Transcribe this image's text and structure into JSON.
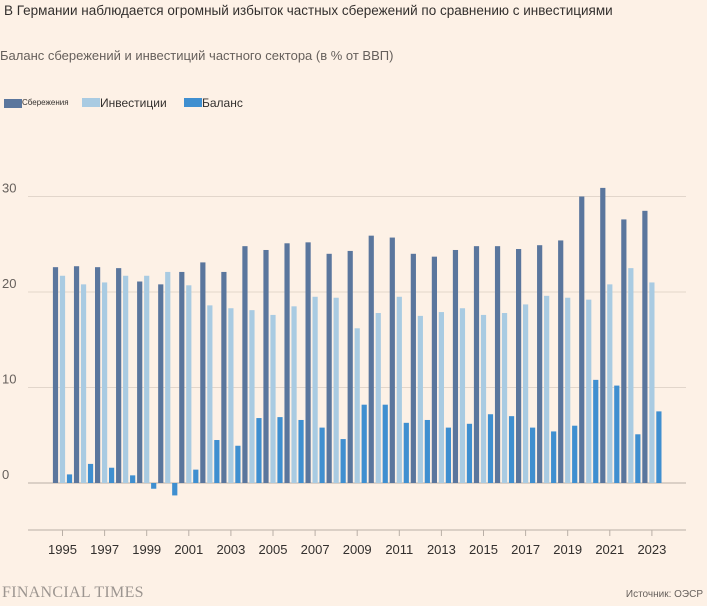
{
  "chart_data": {
    "type": "bar",
    "title": "В Германии наблюдается огромный избыток частных сбережений по сравнению с инвестициями",
    "subtitle": "Баланс сбережений и инвестиций частного сектора (в % от ВВП)",
    "xlabel": "",
    "ylabel": "",
    "ylim": [
      -5,
      33
    ],
    "yticks": [
      0,
      10,
      20,
      30
    ],
    "grid": true,
    "legend_position": "top-left",
    "categories": [
      "1995",
      "1996",
      "1997",
      "1998",
      "1999",
      "2000",
      "2001",
      "2002",
      "2003",
      "2004",
      "2005",
      "2006",
      "2007",
      "2008",
      "2009",
      "2010",
      "2011",
      "2012",
      "2013",
      "2014",
      "2015",
      "2016",
      "2017",
      "2018",
      "2019",
      "2020",
      "2021",
      "2022",
      "2023"
    ],
    "x_tick_labels": [
      "1995",
      "1997",
      "1999",
      "2001",
      "2003",
      "2005",
      "2007",
      "2009",
      "2011",
      "2013",
      "2015",
      "2017",
      "2019",
      "2021",
      "2023"
    ],
    "series": [
      {
        "name": "Сбережения",
        "color": "#5a769d",
        "values": [
          22.6,
          22.7,
          22.6,
          22.5,
          21.1,
          20.8,
          22.1,
          23.1,
          22.1,
          24.8,
          24.4,
          25.1,
          25.2,
          24.0,
          24.3,
          25.9,
          25.7,
          24.0,
          23.7,
          24.4,
          24.8,
          24.8,
          24.5,
          24.9,
          25.4,
          30.0,
          30.9,
          27.6,
          28.5
        ]
      },
      {
        "name": "Инвестиции",
        "color": "#a9cbe2",
        "values": [
          21.7,
          20.8,
          21.0,
          21.7,
          21.7,
          22.1,
          20.7,
          18.6,
          18.3,
          18.1,
          17.6,
          18.5,
          19.5,
          19.4,
          16.2,
          17.8,
          19.5,
          17.5,
          17.9,
          18.3,
          17.6,
          17.8,
          18.7,
          19.6,
          19.4,
          19.2,
          20.8,
          22.5,
          21.0
        ]
      },
      {
        "name": "Баланс",
        "color": "#3f8fd0",
        "values": [
          0.9,
          2.0,
          1.6,
          0.8,
          -0.6,
          -1.3,
          1.4,
          4.5,
          3.9,
          6.8,
          6.9,
          6.6,
          5.8,
          4.6,
          8.2,
          8.2,
          6.3,
          6.6,
          5.8,
          6.2,
          7.2,
          7.0,
          5.8,
          5.4,
          6.0,
          10.8,
          10.2,
          5.1,
          7.5
        ]
      }
    ]
  },
  "legend": {
    "savings": "Сбережения",
    "investment": "Инвестиции",
    "balance": "Баланс"
  },
  "footer": {
    "brand": "FINANCIAL TIMES",
    "source": "Источник: ОЭСР"
  }
}
